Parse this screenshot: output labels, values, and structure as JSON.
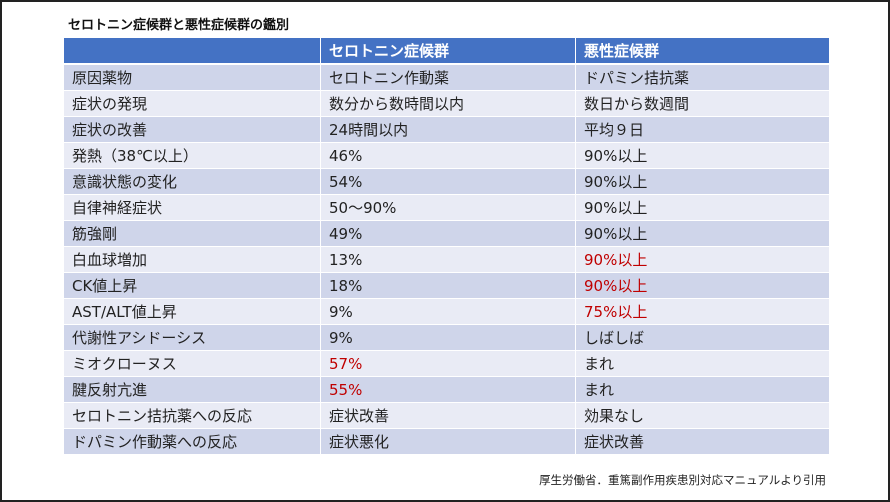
{
  "title": "セロトニン症候群と悪性症候群の鑑別",
  "header": [
    "",
    "セロトニン症候群",
    "悪性症候群"
  ],
  "rows": [
    [
      "原因薬物",
      "セロトニン作動薬",
      "ドパミン拮抗薬"
    ],
    [
      "症状の発現",
      "数分から数時間以内",
      "数日から数週間"
    ],
    [
      "症状の改善",
      "24時間以内",
      "平均９日"
    ],
    [
      "発熱（38℃以上）",
      "46%",
      "90%以上"
    ],
    [
      "意識状態の変化",
      "54%",
      "90%以上"
    ],
    [
      "自律神経症状",
      "50～90%",
      "90%以上"
    ],
    [
      "筋強剛",
      "49%",
      "90%以上"
    ],
    [
      "白血球増加",
      "13%",
      "90%以上"
    ],
    [
      "CK値上昇",
      "18%",
      "90%以上"
    ],
    [
      "AST/ALT値上昇",
      "9%",
      "75%以上"
    ],
    [
      "代謝性アシドーシス",
      "9%",
      "しばしば"
    ],
    [
      "ミオクローヌス",
      "57%",
      "まれ"
    ],
    [
      "腱反射亢進",
      "55%",
      "まれ"
    ],
    [
      "セロトニン拮抗薬への反応",
      "症状改善",
      "効果なし"
    ],
    [
      "ドパミン作動薬への反応",
      "症状悪化",
      "症状改善"
    ]
  ],
  "highlighted_cells": [
    [
      7,
      2
    ],
    [
      8,
      2
    ],
    [
      9,
      2
    ],
    [
      11,
      1
    ],
    [
      12,
      1
    ]
  ],
  "colors": {
    "header": "#4472c4",
    "row_dark": "#cfd5ea",
    "row_light": "#e9ebf5",
    "highlight": "#c00000"
  },
  "citation": "厚生労働省．重篤副作用疾患別対応マニュアルより引用"
}
